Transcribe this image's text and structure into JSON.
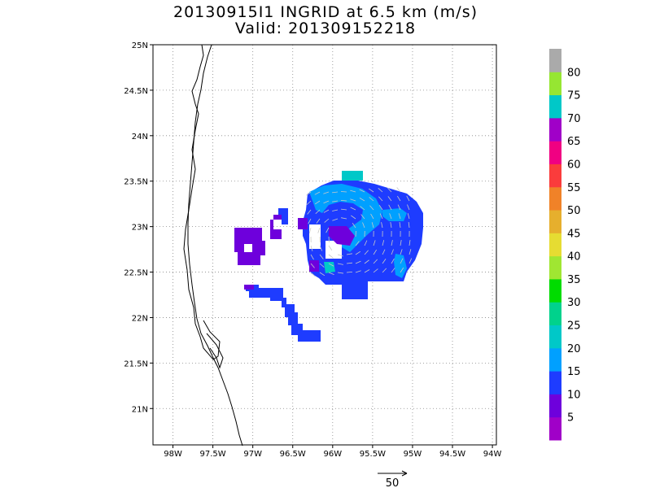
{
  "header": {
    "title": "20130915I1 INGRID at 6.5 km (m/s)",
    "subtitle": "Valid: 201309152218"
  },
  "map": {
    "lon_range": [
      -98.25,
      -93.95
    ],
    "lat_range": [
      20.6,
      25.0
    ],
    "x_ticks": [
      "98W",
      "97.5W",
      "97W",
      "96.5W",
      "96W",
      "95.5W",
      "95W",
      "94.5W",
      "94W"
    ],
    "y_ticks": [
      "21N",
      "21.5N",
      "22N",
      "22.5N",
      "23N",
      "23.5N",
      "24N",
      "24.5N",
      "25N"
    ],
    "grid": "dotted"
  },
  "colorbar": {
    "labels": [
      "5",
      "10",
      "15",
      "20",
      "25",
      "30",
      "35",
      "40",
      "45",
      "50",
      "55",
      "60",
      "65",
      "70",
      "75",
      "80"
    ],
    "colors": [
      "#a000c8",
      "#6e00dc",
      "#1e3cff",
      "#00a0ff",
      "#00c8c8",
      "#00d28c",
      "#00dc00",
      "#a0e632",
      "#e6dc32",
      "#e6af2d",
      "#f08228",
      "#fa3c3c",
      "#f00082",
      "#a000c8",
      "#00c8c8",
      "#96e632",
      "#aaaaaa"
    ]
  },
  "reference_vector": {
    "label": "50"
  },
  "colors": {
    "vector": "#c8c8c8",
    "coast": "#000000",
    "gridline": "#888888"
  }
}
